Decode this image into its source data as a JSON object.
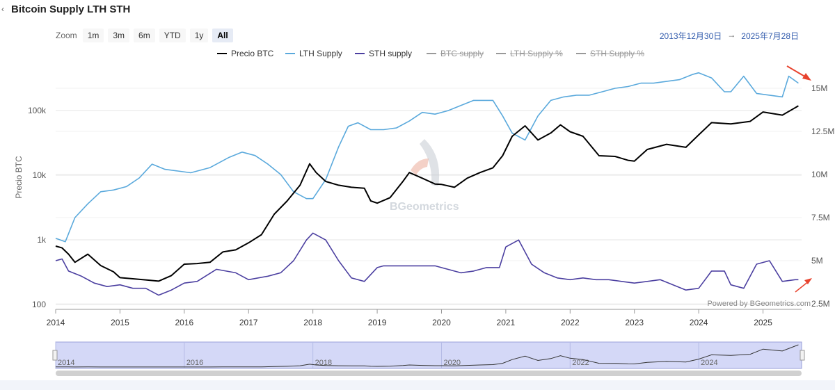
{
  "header": {
    "title": "Bitcoin Supply LTH STH",
    "back_icon": "chevron-left-icon"
  },
  "zoom": {
    "label": "Zoom",
    "buttons": [
      "1m",
      "3m",
      "6m",
      "YTD",
      "1y",
      "All"
    ],
    "active": "All"
  },
  "date_range": {
    "from": "2013年12月30日",
    "arrow": "→",
    "to": "2025年7月28日"
  },
  "credits": "Powered by BGeometrics.com",
  "watermark": "BGeometrics",
  "colors": {
    "btc": "#000000",
    "lth": "#5aa9dc",
    "sth": "#4b3fa0",
    "annotation": "#e8432e"
  },
  "chart_data": {
    "type": "line",
    "title": "Bitcoin Supply LTH STH",
    "ylabel_left": "Precio BTC",
    "yscale_left": "log",
    "ylim_left": [
      100,
      400000
    ],
    "yticks_left": [
      "100",
      "1k",
      "10k",
      "100k"
    ],
    "ylim_right": [
      2500000,
      16000000
    ],
    "yticks_right": [
      "2.5M",
      "5M",
      "7.5M",
      "10M",
      "12.5M",
      "15M"
    ],
    "x_ticks": [
      "2014",
      "2015",
      "2016",
      "2017",
      "2018",
      "2019",
      "2020",
      "2021",
      "2022",
      "2023",
      "2024",
      "2025"
    ],
    "legend_position": "top-center",
    "legend": [
      {
        "name": "Precio BTC",
        "visible": true
      },
      {
        "name": "LTH Supply",
        "visible": true
      },
      {
        "name": "STH supply",
        "visible": true
      },
      {
        "name": "BTC supply",
        "visible": false
      },
      {
        "name": "LTH Supply %",
        "visible": false
      },
      {
        "name": "STH Supply %",
        "visible": false
      }
    ],
    "series": [
      {
        "name": "Precio BTC",
        "axis": "left",
        "x": [
          2014.0,
          2014.1,
          2014.2,
          2014.3,
          2014.5,
          2014.7,
          2014.9,
          2015.0,
          2015.2,
          2015.4,
          2015.6,
          2015.8,
          2016.0,
          2016.2,
          2016.4,
          2016.6,
          2016.8,
          2017.0,
          2017.2,
          2017.4,
          2017.6,
          2017.8,
          2017.95,
          2018.05,
          2018.2,
          2018.4,
          2018.6,
          2018.8,
          2018.9,
          2019.0,
          2019.2,
          2019.4,
          2019.5,
          2019.7,
          2019.9,
          2020.0,
          2020.2,
          2020.4,
          2020.6,
          2020.8,
          2020.95,
          2021.1,
          2021.3,
          2021.5,
          2021.7,
          2021.85,
          2022.0,
          2022.2,
          2022.45,
          2022.7,
          2022.9,
          2023.0,
          2023.2,
          2023.5,
          2023.8,
          2024.0,
          2024.2,
          2024.5,
          2024.8,
          2025.0,
          2025.3,
          2025.55
        ],
        "values": [
          800,
          750,
          600,
          450,
          600,
          400,
          320,
          260,
          250,
          240,
          230,
          280,
          420,
          430,
          450,
          650,
          700,
          900,
          1200,
          2500,
          4000,
          7000,
          15000,
          11000,
          8000,
          7000,
          6500,
          6300,
          4000,
          3700,
          4500,
          8000,
          11000,
          9000,
          7300,
          7200,
          6500,
          9000,
          11000,
          13000,
          20000,
          40000,
          58000,
          35000,
          45000,
          60000,
          47000,
          40000,
          20000,
          19500,
          17000,
          16500,
          25000,
          30000,
          27000,
          42000,
          65000,
          62000,
          68000,
          95000,
          85000,
          118000
        ]
      },
      {
        "name": "LTH Supply",
        "axis": "left_units_M",
        "x": [
          2014.0,
          2014.15,
          2014.3,
          2014.5,
          2014.7,
          2014.9,
          2015.1,
          2015.3,
          2015.5,
          2015.7,
          2015.9,
          2016.1,
          2016.4,
          2016.7,
          2016.9,
          2017.1,
          2017.3,
          2017.5,
          2017.7,
          2017.9,
          2018.0,
          2018.2,
          2018.4,
          2018.55,
          2018.7,
          2018.9,
          2019.1,
          2019.3,
          2019.5,
          2019.7,
          2019.9,
          2020.1,
          2020.3,
          2020.5,
          2020.8,
          2020.95,
          2021.1,
          2021.3,
          2021.5,
          2021.7,
          2021.9,
          2022.1,
          2022.3,
          2022.5,
          2022.7,
          2022.9,
          2023.1,
          2023.3,
          2023.5,
          2023.7,
          2023.9,
          2024.0,
          2024.2,
          2024.4,
          2024.5,
          2024.7,
          2024.9,
          2025.1,
          2025.3,
          2025.4,
          2025.55
        ],
        "values": [
          6.3,
          6.1,
          7.5,
          8.3,
          9.0,
          9.1,
          9.3,
          9.8,
          10.6,
          10.3,
          10.2,
          10.1,
          10.4,
          11.0,
          11.3,
          11.1,
          10.6,
          10.0,
          9.0,
          8.6,
          8.6,
          9.7,
          11.6,
          12.8,
          13.0,
          12.6,
          12.6,
          12.7,
          13.1,
          13.6,
          13.5,
          13.7,
          14.0,
          14.3,
          14.3,
          13.4,
          12.4,
          12.0,
          13.4,
          14.3,
          14.5,
          14.6,
          14.6,
          14.8,
          15.0,
          15.1,
          15.3,
          15.3,
          15.4,
          15.5,
          15.8,
          15.9,
          15.6,
          14.8,
          14.8,
          15.7,
          14.7,
          14.6,
          14.5,
          15.7,
          15.3
        ]
      },
      {
        "name": "STH supply",
        "axis": "left_units_M",
        "x": [
          2014.0,
          2014.1,
          2014.2,
          2014.4,
          2014.6,
          2014.8,
          2015.0,
          2015.2,
          2015.4,
          2015.6,
          2015.8,
          2016.0,
          2016.2,
          2016.5,
          2016.8,
          2017.0,
          2017.3,
          2017.5,
          2017.7,
          2017.9,
          2018.0,
          2018.2,
          2018.4,
          2018.6,
          2018.8,
          2019.0,
          2019.1,
          2019.3,
          2019.5,
          2019.7,
          2019.9,
          2020.1,
          2020.3,
          2020.5,
          2020.7,
          2020.9,
          2021.0,
          2021.2,
          2021.4,
          2021.6,
          2021.8,
          2022.0,
          2022.2,
          2022.4,
          2022.6,
          2022.8,
          2023.0,
          2023.2,
          2023.4,
          2023.6,
          2023.8,
          2024.0,
          2024.2,
          2024.4,
          2024.5,
          2024.7,
          2024.9,
          2025.1,
          2025.3,
          2025.5,
          2025.55
        ],
        "values": [
          5.0,
          5.1,
          4.4,
          4.1,
          3.7,
          3.5,
          3.6,
          3.4,
          3.4,
          3.0,
          3.3,
          3.7,
          3.8,
          4.5,
          4.3,
          3.9,
          4.1,
          4.3,
          5.0,
          6.2,
          6.6,
          6.2,
          5.0,
          4.0,
          3.8,
          4.6,
          4.7,
          4.7,
          4.7,
          4.7,
          4.7,
          4.5,
          4.3,
          4.4,
          4.6,
          4.6,
          5.8,
          6.2,
          4.8,
          4.3,
          4.0,
          3.9,
          4.0,
          3.9,
          3.9,
          3.8,
          3.7,
          3.8,
          3.9,
          3.6,
          3.3,
          3.4,
          4.4,
          4.4,
          3.6,
          3.4,
          4.8,
          5.0,
          3.8,
          3.9,
          3.9
        ]
      }
    ]
  }
}
